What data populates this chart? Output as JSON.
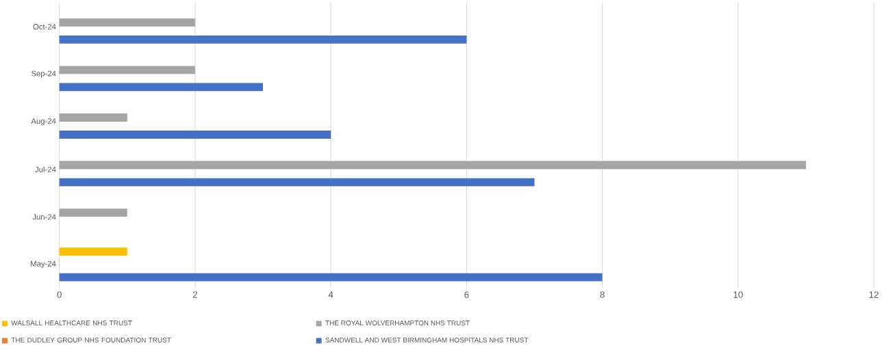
{
  "chart_data": {
    "type": "bar",
    "orientation": "horizontal",
    "categories": [
      "Oct-24",
      "Sep-24",
      "Aug-24",
      "Jul-24",
      "Jun-24",
      "May-24"
    ],
    "series": [
      {
        "name": "SANDWELL AND WEST BIRMINGHAM HOSPITALS NHS TRUST",
        "color": "#4472c4",
        "values": [
          6,
          3,
          4,
          7,
          null,
          8
        ]
      },
      {
        "name": "THE DUDLEY GROUP NHS FOUNDATION TRUST",
        "color": "#ed7d31",
        "values": [
          null,
          null,
          null,
          null,
          null,
          null
        ]
      },
      {
        "name": "THE ROYAL WOLVERHAMPTON NHS TRUST",
        "color": "#a5a5a5",
        "values": [
          2,
          2,
          1,
          11,
          1,
          null
        ]
      },
      {
        "name": "WALSALL HEALTHCARE NHS TRUST",
        "color": "#ffc000",
        "values": [
          null,
          null,
          null,
          null,
          null,
          1
        ]
      }
    ],
    "xlim": [
      0,
      12
    ],
    "xticks": [
      0,
      2,
      4,
      6,
      8,
      10,
      12
    ],
    "grid": "x",
    "legend": "bottom"
  }
}
